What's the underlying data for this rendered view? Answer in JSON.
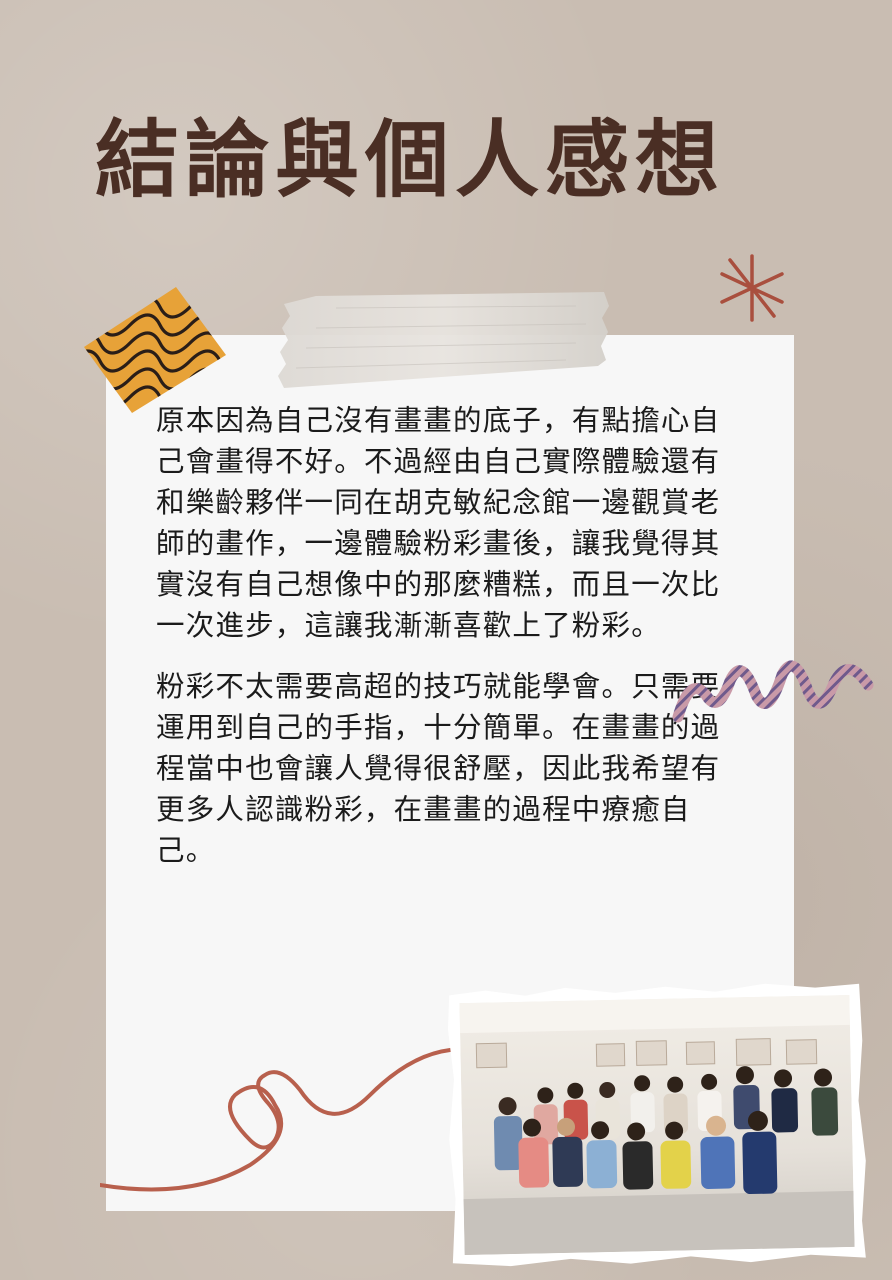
{
  "title": "結論與個人感想",
  "paragraphs": [
    "原本因為自己沒有畫畫的底子，有點擔心自己會畫得不好。不過經由自己實際體驗還有和樂齡夥伴一同在胡克敏紀念館一邊觀賞老師的畫作，一邊體驗粉彩畫後，讓我覺得其實沒有自己想像中的那麼糟糕，而且一次比一次進步，這讓我漸漸喜歡上了粉彩。",
    "粉彩不太需要高超的技巧就能學會。只需要運用到自己的手指，十分簡單。在畫畫的過程當中也會讓人覺得很舒壓，因此我希望有更多人認識粉彩，在畫畫的過程中療癒自己。"
  ],
  "colors": {
    "background": "#c9bdb2",
    "title": "#4a2e24",
    "card": "#f7f7f7",
    "text": "#1b1b1b",
    "accent": "#b8604d",
    "tape_yellow": "#e7a238"
  },
  "decorations": [
    "asterisk-icon",
    "washi-tape",
    "patterned-tape",
    "zigzag-doodle",
    "heart-doodle",
    "group-photo"
  ]
}
